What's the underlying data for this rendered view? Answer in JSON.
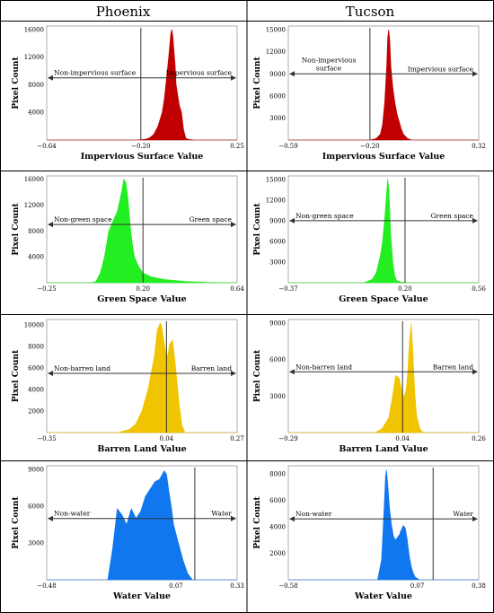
{
  "columns": [
    "Phoenix",
    "Tucson"
  ],
  "chart_data": [
    {
      "type": "area",
      "id": "phx-imp",
      "title": "",
      "xlabel": "Impervious Surface Value",
      "ylabel": "Pixel Count",
      "color": "#c00000",
      "xlim": [
        -0.64,
        0.25
      ],
      "ylim": [
        0,
        16500
      ],
      "xticks": [
        -0.64,
        -0.2,
        0.25
      ],
      "xtick_labels": [
        "−0.64",
        "−0.20",
        "0.25"
      ],
      "yticks": [
        4000,
        8000,
        12000,
        16000
      ],
      "ytick_labels": [
        "4000",
        "8000",
        "12000",
        "16000"
      ],
      "threshold": -0.2,
      "arrow": {
        "y": 9000,
        "left_label": "Non-impervious surface",
        "right_label": "Impervious surface"
      },
      "x": [
        -0.64,
        -0.22,
        -0.18,
        -0.16,
        -0.14,
        -0.12,
        -0.1,
        -0.09,
        -0.08,
        -0.07,
        -0.06,
        -0.055,
        -0.05,
        -0.045,
        -0.04,
        -0.035,
        -0.03,
        -0.02,
        -0.01,
        0.0,
        0.01,
        0.02,
        0.05,
        0.1,
        0.25
      ],
      "values": [
        0,
        0,
        100,
        300,
        800,
        2000,
        4000,
        6000,
        9000,
        12000,
        15500,
        16000,
        15000,
        13000,
        11000,
        8000,
        7000,
        5000,
        4000,
        1500,
        300,
        100,
        0,
        0,
        0
      ]
    },
    {
      "type": "area",
      "id": "tuc-imp",
      "title": "",
      "xlabel": "Impervious Surface Value",
      "ylabel": "Pixel Count",
      "color": "#c00000",
      "xlim": [
        -0.59,
        0.32
      ],
      "ylim": [
        0,
        15500
      ],
      "xticks": [
        -0.59,
        -0.2,
        0.32
      ],
      "xtick_labels": [
        "−0.59",
        "−0.20",
        "0.32"
      ],
      "yticks": [
        3000,
        6000,
        9000,
        12000,
        15000
      ],
      "ytick_labels": [
        "3000",
        "6000",
        "9000",
        "12000",
        "15000"
      ],
      "threshold": -0.2,
      "arrow": {
        "y": 9000,
        "left_label": "Non-impervious surface",
        "right_label": "Impervious surface"
      },
      "x": [
        -0.59,
        -0.2,
        -0.17,
        -0.15,
        -0.14,
        -0.13,
        -0.12,
        -0.115,
        -0.11,
        -0.105,
        -0.1,
        -0.09,
        -0.08,
        -0.07,
        -0.06,
        -0.05,
        -0.04,
        -0.02,
        0.0,
        0.32
      ],
      "values": [
        0,
        0,
        200,
        800,
        2000,
        5000,
        10000,
        14000,
        15000,
        13500,
        10000,
        7000,
        5000,
        3500,
        2500,
        1500,
        800,
        200,
        0,
        0
      ]
    },
    {
      "type": "area",
      "id": "phx-green",
      "title": "",
      "xlabel": "Green Space Value",
      "ylabel": "Pixel Count",
      "color": "#22ee22",
      "xlim": [
        -0.25,
        0.64
      ],
      "ylim": [
        0,
        16500
      ],
      "xticks": [
        -0.25,
        0.2,
        0.64
      ],
      "xtick_labels": [
        "−0.25",
        "0.20",
        "0.64"
      ],
      "yticks": [
        4000,
        8000,
        12000,
        16000
      ],
      "ytick_labels": [
        "4000",
        "8000",
        "12000",
        "16000"
      ],
      "threshold": 0.2,
      "arrow": {
        "y": 9000,
        "left_label": "Non-green space",
        "right_label": "Green space"
      },
      "x": [
        -0.25,
        -0.04,
        -0.02,
        0.0,
        0.02,
        0.04,
        0.06,
        0.08,
        0.1,
        0.11,
        0.12,
        0.13,
        0.14,
        0.15,
        0.16,
        0.18,
        0.2,
        0.24,
        0.3,
        0.4,
        0.5,
        0.64
      ],
      "values": [
        0,
        0,
        200,
        1500,
        4000,
        8000,
        9500,
        11000,
        14000,
        16000,
        15500,
        13000,
        9000,
        6000,
        4000,
        2500,
        1500,
        900,
        500,
        200,
        50,
        0
      ]
    },
    {
      "type": "area",
      "id": "tuc-green",
      "title": "",
      "xlabel": "Green Space Value",
      "ylabel": "Pixel Count",
      "color": "#22ee22",
      "xlim": [
        -0.37,
        0.56
      ],
      "ylim": [
        0,
        15500
      ],
      "xticks": [
        -0.37,
        0.2,
        0.56
      ],
      "xtick_labels": [
        "−0.37",
        "0.20",
        "0.56"
      ],
      "yticks": [
        3000,
        6000,
        9000,
        12000,
        15000
      ],
      "ytick_labels": [
        "3000",
        "6000",
        "9000",
        "12000",
        "15000"
      ],
      "threshold": 0.2,
      "arrow": {
        "y": 9000,
        "left_label": "Non-green space",
        "right_label": "Green space"
      },
      "x": [
        -0.37,
        0.0,
        0.04,
        0.06,
        0.08,
        0.09,
        0.1,
        0.11,
        0.115,
        0.12,
        0.125,
        0.13,
        0.14,
        0.15,
        0.16,
        0.18,
        0.22,
        0.56
      ],
      "values": [
        0,
        0,
        500,
        1500,
        4000,
        6000,
        9000,
        13000,
        15000,
        14000,
        11000,
        7000,
        3000,
        1000,
        300,
        100,
        0,
        0
      ]
    },
    {
      "type": "area",
      "id": "phx-barren",
      "title": "",
      "xlabel": "Barren Land Value",
      "ylabel": "Pixel Count",
      "color": "#f0c400",
      "xlim": [
        -0.35,
        0.27
      ],
      "ylim": [
        0,
        10500
      ],
      "xticks": [
        -0.35,
        0.04,
        0.27
      ],
      "xtick_labels": [
        "−0.35",
        "0.04",
        "0.27"
      ],
      "yticks": [
        2000,
        4000,
        6000,
        8000,
        10000
      ],
      "ytick_labels": [
        "2000",
        "4000",
        "6000",
        "8000",
        "10000"
      ],
      "threshold": 0.04,
      "arrow": {
        "y": 5500,
        "left_label": "Non-barren land",
        "right_label": "Barren land"
      },
      "x": [
        -0.35,
        -0.12,
        -0.08,
        -0.06,
        -0.04,
        -0.02,
        0.0,
        0.01,
        0.02,
        0.025,
        0.03,
        0.04,
        0.045,
        0.05,
        0.06,
        0.07,
        0.08,
        0.09,
        0.1,
        0.12,
        0.27
      ],
      "values": [
        0,
        0,
        300,
        800,
        2000,
        4000,
        7000,
        9500,
        10200,
        9800,
        8800,
        7000,
        7300,
        8200,
        8600,
        6000,
        3000,
        700,
        0,
        0,
        0
      ]
    },
    {
      "type": "area",
      "id": "tuc-barren",
      "title": "",
      "xlabel": "Barren Land Value",
      "ylabel": "Pixel Count",
      "color": "#f0c400",
      "xlim": [
        -0.29,
        0.26
      ],
      "ylim": [
        0,
        9300
      ],
      "xticks": [
        -0.29,
        0.04,
        0.26
      ],
      "xtick_labels": [
        "−0.29",
        "0.04",
        "0.26"
      ],
      "yticks": [
        3000,
        6000,
        9000
      ],
      "ytick_labels": [
        "3000",
        "6000",
        "9000"
      ],
      "threshold": 0.04,
      "arrow": {
        "y": 5000,
        "left_label": "Non-barren land",
        "right_label": "Barren land"
      },
      "x": [
        -0.29,
        -0.04,
        -0.02,
        0.0,
        0.01,
        0.02,
        0.03,
        0.04,
        0.045,
        0.05,
        0.055,
        0.06,
        0.065,
        0.07,
        0.075,
        0.08,
        0.09,
        0.1,
        0.26
      ],
      "values": [
        0,
        0,
        300,
        1200,
        2800,
        4700,
        4500,
        3200,
        2900,
        3500,
        5000,
        7500,
        9000,
        6500,
        3500,
        1500,
        300,
        0,
        0
      ]
    },
    {
      "type": "area",
      "id": "phx-water",
      "title": "",
      "xlabel": "Water Value",
      "ylabel": "Pixel Count",
      "color": "#1177ee",
      "xlim": [
        -0.48,
        0.33
      ],
      "ylim": [
        0,
        9300
      ],
      "xticks": [
        -0.48,
        0.07,
        0.33
      ],
      "xtick_labels": [
        "−0.48",
        "0.07",
        "0.33"
      ],
      "yticks": [
        3000,
        6000,
        9000
      ],
      "ytick_labels": [
        "3000",
        "6000",
        "9000"
      ],
      "threshold": 0.15,
      "arrow": {
        "y": 5000,
        "left_label": "Non-water",
        "right_label": "Water"
      },
      "x": [
        -0.48,
        -0.22,
        -0.2,
        -0.18,
        -0.16,
        -0.14,
        -0.12,
        -0.1,
        -0.08,
        -0.06,
        -0.04,
        -0.02,
        0.0,
        0.02,
        0.03,
        0.04,
        0.05,
        0.06,
        0.08,
        0.1,
        0.12,
        0.14,
        0.33
      ],
      "values": [
        0,
        0,
        2500,
        5800,
        5300,
        4500,
        5800,
        5000,
        5600,
        6800,
        7400,
        8000,
        8200,
        8900,
        8600,
        7200,
        6000,
        4500,
        3000,
        1600,
        500,
        0,
        0
      ]
    },
    {
      "type": "area",
      "id": "tuc-water",
      "title": "",
      "xlabel": "Water Value",
      "ylabel": "Pixel Count",
      "color": "#1177ee",
      "xlim": [
        -0.58,
        0.38
      ],
      "ylim": [
        0,
        8600
      ],
      "xticks": [
        -0.58,
        0.07,
        0.38
      ],
      "xtick_labels": [
        "−0.58",
        "0.07",
        "0.38"
      ],
      "yticks": [
        2000,
        4000,
        6000,
        8000
      ],
      "ytick_labels": [
        "2000",
        "4000",
        "6000",
        "8000"
      ],
      "threshold": 0.15,
      "arrow": {
        "y": 4600,
        "left_label": "Non-water",
        "right_label": "Water"
      },
      "x": [
        -0.58,
        -0.13,
        -0.11,
        -0.1,
        -0.09,
        -0.085,
        -0.08,
        -0.07,
        -0.06,
        -0.05,
        -0.04,
        -0.02,
        -0.01,
        0.0,
        0.01,
        0.02,
        0.03,
        0.04,
        0.05,
        0.06,
        0.08,
        0.38
      ],
      "values": [
        0,
        0,
        1500,
        4500,
        7800,
        8300,
        7500,
        5500,
        4200,
        3300,
        3000,
        3400,
        3800,
        4100,
        3900,
        3000,
        1800,
        1000,
        500,
        200,
        0,
        0
      ]
    }
  ]
}
